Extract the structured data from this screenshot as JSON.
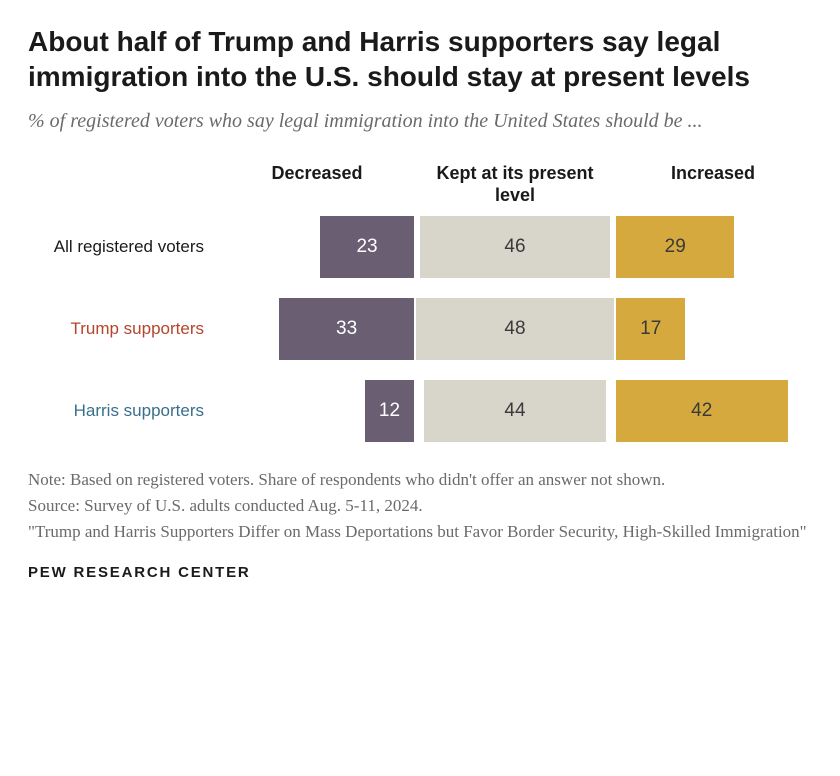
{
  "title": "About half of Trump and Harris supporters say legal immigration into the U.S. should stay at present levels",
  "subtitle": "% of registered voters who say legal immigration into the United States should be ...",
  "title_fontsize": 28,
  "subtitle_fontsize": 20,
  "columns": [
    {
      "label": "Decreased",
      "color": "#695e72",
      "text_color": "#ffffff",
      "max": 48
    },
    {
      "label": "Kept at its present level",
      "color": "#d8d5cb",
      "text_color": "#3a3a3a",
      "max": 48
    },
    {
      "label": "Increased",
      "color": "#d5a93d",
      "text_color": "#3a3a3a",
      "max": 48
    }
  ],
  "header_fontsize": 18,
  "rows": [
    {
      "label": "All registered voters",
      "label_color": "#1a1a1a",
      "values": [
        23,
        46,
        29
      ]
    },
    {
      "label": "Trump supporters",
      "label_color": "#b4452c",
      "values": [
        33,
        48,
        17
      ]
    },
    {
      "label": "Harris supporters",
      "label_color": "#3a6f8c",
      "values": [
        12,
        44,
        42
      ]
    }
  ],
  "row_label_fontsize": 17,
  "value_fontsize": 19,
  "notes": [
    "Note: Based on registered voters. Share of respondents who didn't offer an answer not shown.",
    "Source: Survey of U.S. adults conducted Aug. 5-11, 2024.",
    "\"Trump and Harris Supporters Differ on Mass Deportations but Favor Border Security, High-Skilled Immigration\""
  ],
  "note_fontsize": 17,
  "footer": "PEW RESEARCH CENTER",
  "footer_fontsize": 15
}
